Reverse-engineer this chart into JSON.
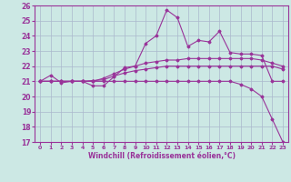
{
  "xlabel": "Windchill (Refroidissement éolien,°C)",
  "xlim": [
    -0.5,
    23.5
  ],
  "ylim": [
    17,
    26
  ],
  "xticks": [
    0,
    1,
    2,
    3,
    4,
    5,
    6,
    7,
    8,
    9,
    10,
    11,
    12,
    13,
    14,
    15,
    16,
    17,
    18,
    19,
    20,
    21,
    22,
    23
  ],
  "yticks": [
    17,
    18,
    19,
    20,
    21,
    22,
    23,
    24,
    25,
    26
  ],
  "bg_color": "#cce8e4",
  "grid_color": "#aab8cc",
  "line_color": "#993399",
  "lines": [
    [
      21.0,
      21.4,
      20.9,
      21.0,
      21.0,
      20.7,
      20.7,
      21.3,
      21.9,
      22.0,
      23.5,
      24.0,
      25.7,
      25.2,
      23.3,
      23.7,
      23.6,
      24.3,
      22.9,
      22.8,
      22.8,
      22.7,
      21.0,
      21.0
    ],
    [
      21.0,
      21.0,
      21.0,
      21.0,
      21.0,
      21.05,
      21.1,
      21.35,
      21.55,
      21.7,
      21.8,
      21.9,
      22.0,
      22.0,
      22.0,
      22.0,
      22.0,
      22.0,
      22.0,
      22.0,
      22.0,
      22.0,
      22.0,
      21.8
    ],
    [
      21.0,
      21.0,
      21.0,
      21.0,
      21.0,
      21.0,
      21.2,
      21.5,
      21.8,
      22.0,
      22.2,
      22.3,
      22.4,
      22.4,
      22.5,
      22.5,
      22.5,
      22.5,
      22.5,
      22.5,
      22.5,
      22.4,
      22.2,
      22.0
    ],
    [
      21.0,
      21.0,
      21.0,
      21.0,
      21.0,
      21.0,
      21.0,
      21.0,
      21.0,
      21.0,
      21.0,
      21.0,
      21.0,
      21.0,
      21.0,
      21.0,
      21.0,
      21.0,
      21.0,
      20.8,
      20.5,
      20.0,
      18.5,
      17.0
    ]
  ]
}
